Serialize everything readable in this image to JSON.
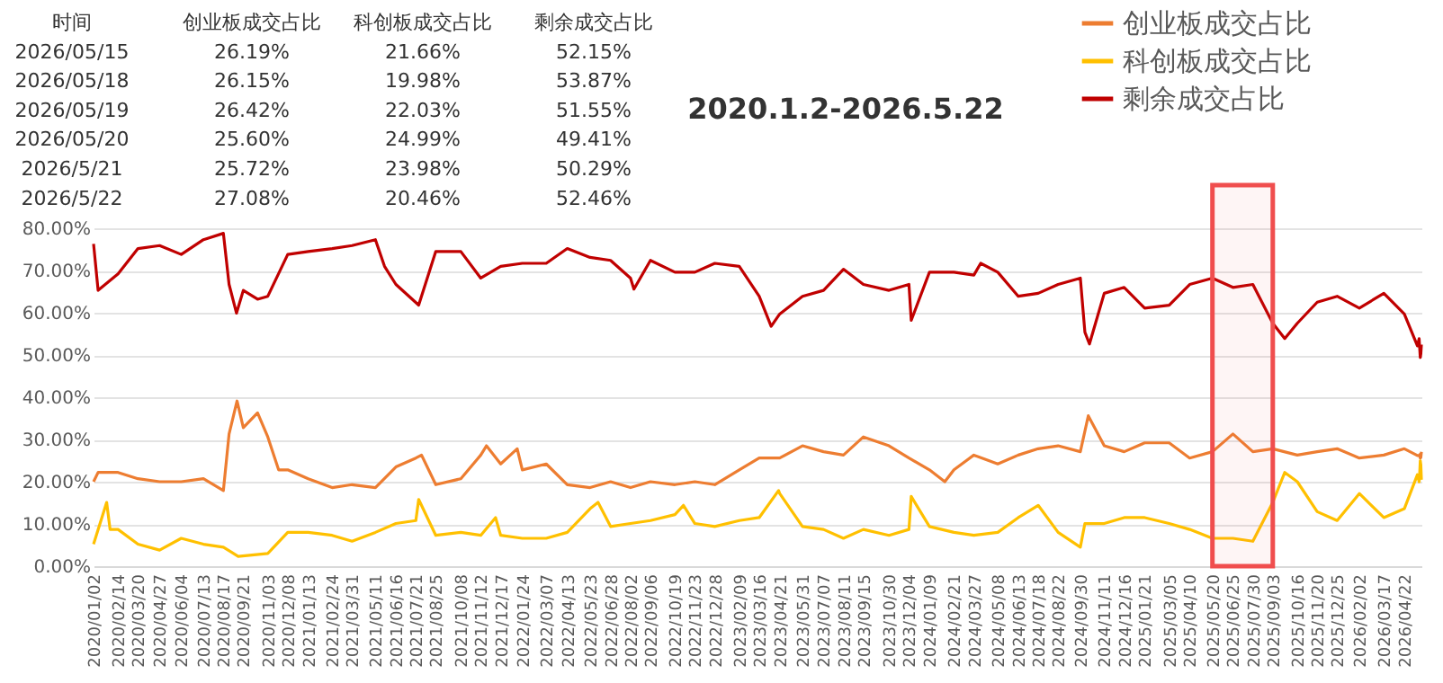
{
  "chart_data": {
    "type": "line",
    "title": "2020.1.2-2026.5.22",
    "annotations": [
      "时间",
      "创业板成交占比",
      "科创板成交占比",
      "剩余成交占比",
      "2026/05/15",
      "26.19%",
      "21.66%",
      "52.15%",
      "2026/05/18",
      "26.15%",
      "19.98%",
      "53.87%",
      "2026/05/19",
      "26.42%",
      "22.03%",
      "51.55%",
      "2026/05/20",
      "25.60%",
      "24.99%",
      "49.41%",
      "2026/5/21",
      "25.72%",
      "23.98%",
      "50.29%",
      "2026/5/22",
      "27.08%",
      "20.46%",
      "52.46%"
    ],
    "series": [
      {
        "name": "创业板成交占比",
        "color": "#ed7d31",
        "x": [
          "2020-01-02",
          "2020-01-10",
          "2020-02-14",
          "2020-03-20",
          "2020-04-27",
          "2020-06-04",
          "2020-07-13",
          "2020-08-17",
          "2020-08-27",
          "2020-09-10",
          "2020-09-21",
          "2020-10-16",
          "2020-11-03",
          "2020-11-22",
          "2020-12-08",
          "2021-01-13",
          "2021-02-24",
          "2021-03-31",
          "2021-05-11",
          "2021-06-16",
          "2021-07-21",
          "2021-07-31",
          "2021-08-25",
          "2021-10-08",
          "2021-11-12",
          "2021-11-22",
          "2021-12-17",
          "2022-01-15",
          "2022-01-24",
          "2022-03-07",
          "2022-04-13",
          "2022-05-23",
          "2022-06-28",
          "2022-08-02",
          "2022-09-06",
          "2022-10-19",
          "2022-11-23",
          "2022-12-28",
          "2023-02-09",
          "2023-03-16",
          "2023-04-21",
          "2023-05-31",
          "2023-07-07",
          "2023-08-11",
          "2023-09-15",
          "2023-10-30",
          "2023-12-04",
          "2024-01-09",
          "2024-02-05",
          "2024-02-21",
          "2024-03-27",
          "2024-05-08",
          "2024-06-13",
          "2024-07-18",
          "2024-08-22",
          "2024-09-30",
          "2024-10-14",
          "2024-11-11",
          "2024-12-16",
          "2025-01-21",
          "2025-03-05",
          "2025-04-10",
          "2025-05-20",
          "2025-06-25",
          "2025-07-30",
          "2025-09-03",
          "2025-10-16",
          "2025-11-20",
          "2025-12-25",
          "2026-02-02",
          "2026-03-17",
          "2026-04-22",
          "2026-05-15",
          "2026-05-18",
          "2026-05-19",
          "2026-05-20",
          "2026-05-21",
          "2026-05-22"
        ],
        "values": [
          20.0,
          22.2,
          22.2,
          20.7,
          20.0,
          20.0,
          20.7,
          17.9,
          31.3,
          39.1,
          32.8,
          36.3,
          30.6,
          22.8,
          22.8,
          20.7,
          18.6,
          19.3,
          18.6,
          23.5,
          25.6,
          26.3,
          19.3,
          20.7,
          26.3,
          28.5,
          24.2,
          27.8,
          22.8,
          24.2,
          19.3,
          18.6,
          20.0,
          18.6,
          20.0,
          19.3,
          20.0,
          19.3,
          22.8,
          25.6,
          25.6,
          28.5,
          27.1,
          26.3,
          30.6,
          28.5,
          25.6,
          22.8,
          20.0,
          22.8,
          26.3,
          24.2,
          26.3,
          27.8,
          28.5,
          27.1,
          35.6,
          28.5,
          27.1,
          29.2,
          29.2,
          25.6,
          27.1,
          31.3,
          27.1,
          27.8,
          26.3,
          27.1,
          27.8,
          25.6,
          26.3,
          27.8,
          26.19,
          26.15,
          26.42,
          25.6,
          25.72,
          27.08
        ]
      },
      {
        "name": "科创板成交占比",
        "color": "#ffc000",
        "x": [
          "2020-01-02",
          "2020-01-25",
          "2020-01-31",
          "2020-02-14",
          "2020-03-20",
          "2020-04-27",
          "2020-06-04",
          "2020-07-13",
          "2020-08-17",
          "2020-09-12",
          "2020-11-03",
          "2020-12-08",
          "2021-01-13",
          "2021-02-24",
          "2021-03-31",
          "2021-05-11",
          "2021-06-16",
          "2021-07-21",
          "2021-07-26",
          "2021-08-25",
          "2021-10-08",
          "2021-11-12",
          "2021-12-08",
          "2021-12-17",
          "2022-01-24",
          "2022-03-07",
          "2022-04-13",
          "2022-05-23",
          "2022-06-06",
          "2022-06-28",
          "2022-08-02",
          "2022-09-06",
          "2022-10-19",
          "2022-11-03",
          "2022-11-23",
          "2022-12-28",
          "2023-02-09",
          "2023-03-16",
          "2023-04-19",
          "2023-04-21",
          "2023-05-31",
          "2023-07-07",
          "2023-08-11",
          "2023-09-15",
          "2023-10-30",
          "2023-12-04",
          "2023-12-08",
          "2024-01-09",
          "2024-02-21",
          "2024-03-27",
          "2024-05-08",
          "2024-06-13",
          "2024-07-18",
          "2024-08-22",
          "2024-09-30",
          "2024-10-08",
          "2024-11-11",
          "2024-12-16",
          "2025-01-21",
          "2025-03-05",
          "2025-04-10",
          "2025-05-20",
          "2025-06-25",
          "2025-07-30",
          "2025-09-03",
          "2025-09-24",
          "2025-10-16",
          "2025-11-20",
          "2025-12-25",
          "2026-02-02",
          "2026-03-17",
          "2026-04-22",
          "2026-05-15",
          "2026-05-18",
          "2026-05-19",
          "2026-05-20",
          "2026-05-21",
          "2026-05-22"
        ],
        "values": [
          5.2,
          15.1,
          8.7,
          8.7,
          5.2,
          3.8,
          6.6,
          5.2,
          4.5,
          2.3,
          3.0,
          8.0,
          8.0,
          7.3,
          5.9,
          8.0,
          10.1,
          10.8,
          15.8,
          7.3,
          8.0,
          7.3,
          11.5,
          7.3,
          6.6,
          6.6,
          8.0,
          13.6,
          15.1,
          9.4,
          10.1,
          10.8,
          12.2,
          14.4,
          10.1,
          9.4,
          10.8,
          11.5,
          17.9,
          17.2,
          9.4,
          8.7,
          6.6,
          8.7,
          7.3,
          8.7,
          16.5,
          9.4,
          8.0,
          7.3,
          8.0,
          11.5,
          14.4,
          8.0,
          4.5,
          10.1,
          10.1,
          11.5,
          11.5,
          10.1,
          8.7,
          6.6,
          6.6,
          5.9,
          15.1,
          22.2,
          20.0,
          12.9,
          10.8,
          17.2,
          11.5,
          13.6,
          21.66,
          19.98,
          22.03,
          24.99,
          23.98,
          20.46
        ]
      },
      {
        "name": "剩余成交占比",
        "color": "#c00000",
        "x": [
          "2020-01-02",
          "2020-01-10",
          "2020-02-14",
          "2020-03-20",
          "2020-04-27",
          "2020-06-04",
          "2020-07-13",
          "2020-08-17",
          "2020-08-27",
          "2020-09-09",
          "2020-09-21",
          "2020-10-16",
          "2020-11-03",
          "2020-12-08",
          "2021-01-13",
          "2021-02-24",
          "2021-03-31",
          "2021-05-11",
          "2021-05-27",
          "2021-06-16",
          "2021-07-26",
          "2021-08-25",
          "2021-10-08",
          "2021-11-12",
          "2021-12-17",
          "2022-01-24",
          "2022-03-07",
          "2022-04-13",
          "2022-05-23",
          "2022-06-28",
          "2022-08-02",
          "2022-08-08",
          "2022-09-06",
          "2022-10-19",
          "2022-11-23",
          "2022-12-28",
          "2023-02-09",
          "2023-03-16",
          "2023-04-06",
          "2023-04-21",
          "2023-05-31",
          "2023-07-07",
          "2023-08-11",
          "2023-09-15",
          "2023-10-30",
          "2023-12-04",
          "2023-12-08",
          "2024-01-09",
          "2024-02-21",
          "2024-03-27",
          "2024-04-08",
          "2024-05-08",
          "2024-06-13",
          "2024-07-18",
          "2024-08-22",
          "2024-09-30",
          "2024-10-08",
          "2024-10-16",
          "2024-11-11",
          "2024-12-16",
          "2025-01-21",
          "2025-03-05",
          "2025-04-10",
          "2025-05-20",
          "2025-06-25",
          "2025-07-30",
          "2025-09-03",
          "2025-09-24",
          "2025-10-16",
          "2025-11-20",
          "2025-12-25",
          "2026-02-02",
          "2026-03-17",
          "2026-04-22",
          "2026-05-15",
          "2026-05-18",
          "2026-05-19",
          "2026-05-20",
          "2026-05-21",
          "2026-05-22"
        ],
        "values": [
          76.3,
          65.3,
          69.2,
          75.2,
          75.9,
          73.8,
          77.3,
          78.8,
          66.7,
          59.9,
          65.3,
          63.2,
          63.9,
          73.8,
          74.5,
          75.2,
          75.9,
          77.3,
          71.0,
          66.7,
          61.8,
          74.5,
          74.5,
          68.2,
          71.0,
          71.7,
          71.7,
          75.2,
          73.1,
          72.4,
          68.2,
          65.6,
          72.4,
          69.6,
          69.6,
          71.7,
          71.0,
          63.9,
          56.8,
          59.7,
          63.9,
          65.3,
          70.3,
          66.7,
          65.3,
          66.7,
          58.2,
          69.6,
          69.6,
          68.9,
          71.7,
          69.6,
          63.9,
          64.6,
          66.7,
          68.2,
          55.4,
          52.6,
          64.6,
          66.0,
          61.1,
          61.8,
          66.7,
          68.2,
          66.0,
          66.7,
          57.5,
          53.9,
          57.5,
          62.5,
          63.9,
          61.1,
          64.6,
          59.7,
          52.15,
          53.87,
          51.55,
          49.41,
          50.29,
          52.46
        ]
      }
    ],
    "xlim": [
      "2020-01-02",
      "2026-05-22"
    ],
    "xticks": [
      {
        "value": "2020-01-02",
        "label": "2020/01/02"
      },
      {
        "value": "2020-02-14",
        "label": "2020/02/14"
      },
      {
        "value": "2020-03-20",
        "label": "2020/03/20"
      },
      {
        "value": "2020-04-27",
        "label": "2020/04/27"
      },
      {
        "value": "2020-06-04",
        "label": "2020/06/04"
      },
      {
        "value": "2020-07-13",
        "label": "2020/07/13"
      },
      {
        "value": "2020-08-17",
        "label": "2020/08/17"
      },
      {
        "value": "2020-09-21",
        "label": "2020/09/21"
      },
      {
        "value": "2020-11-03",
        "label": "2020/11/03"
      },
      {
        "value": "2020-12-08",
        "label": "2020/12/08"
      },
      {
        "value": "2021-01-13",
        "label": "2021/01/13"
      },
      {
        "value": "2021-02-24",
        "label": "2021/02/24"
      },
      {
        "value": "2021-03-31",
        "label": "2021/03/31"
      },
      {
        "value": "2021-05-11",
        "label": "2021/05/11"
      },
      {
        "value": "2021-06-16",
        "label": "2021/06/16"
      },
      {
        "value": "2021-07-21",
        "label": "2021/07/21"
      },
      {
        "value": "2021-08-25",
        "label": "2021/08/25"
      },
      {
        "value": "2021-10-08",
        "label": "2021/10/08"
      },
      {
        "value": "2021-11-12",
        "label": "2021/11/12"
      },
      {
        "value": "2021-12-17",
        "label": "2021/12/17"
      },
      {
        "value": "2022-01-24",
        "label": "2022/01/24"
      },
      {
        "value": "2022-03-07",
        "label": "2022/03/07"
      },
      {
        "value": "2022-04-13",
        "label": "2022/04/13"
      },
      {
        "value": "2022-05-23",
        "label": "2022/05/23"
      },
      {
        "value": "2022-06-28",
        "label": "2022/06/28"
      },
      {
        "value": "2022-08-02",
        "label": "2022/08/02"
      },
      {
        "value": "2022-09-06",
        "label": "2022/09/06"
      },
      {
        "value": "2022-10-19",
        "label": "2022/10/19"
      },
      {
        "value": "2022-11-23",
        "label": "2022/11/23"
      },
      {
        "value": "2022-12-28",
        "label": "2022/12/28"
      },
      {
        "value": "2023-02-09",
        "label": "2023/02/09"
      },
      {
        "value": "2023-03-16",
        "label": "2023/03/16"
      },
      {
        "value": "2023-04-21",
        "label": "2023/04/21"
      },
      {
        "value": "2023-05-31",
        "label": "2023/05/31"
      },
      {
        "value": "2023-07-07",
        "label": "2023/07/07"
      },
      {
        "value": "2023-08-11",
        "label": "2023/08/11"
      },
      {
        "value": "2023-09-15",
        "label": "2023/09/15"
      },
      {
        "value": "2023-10-30",
        "label": "2023/10/30"
      },
      {
        "value": "2023-12-04",
        "label": "2023/12/04"
      },
      {
        "value": "2024-01-09",
        "label": "2024/01/09"
      },
      {
        "value": "2024-02-21",
        "label": "2024/02/21"
      },
      {
        "value": "2024-03-27",
        "label": "2024/03/27"
      },
      {
        "value": "2024-05-08",
        "label": "2024/05/08"
      },
      {
        "value": "2024-06-13",
        "label": "2024/06/13"
      },
      {
        "value": "2024-07-18",
        "label": "2024/07/18"
      },
      {
        "value": "2024-08-22",
        "label": "2024/08/22"
      },
      {
        "value": "2024-09-30",
        "label": "2024/09/30"
      },
      {
        "value": "2024-11-11",
        "label": "2024/11/11"
      },
      {
        "value": "2024-12-16",
        "label": "2024/12/16"
      },
      {
        "value": "2025-01-21",
        "label": "2025/01/21"
      },
      {
        "value": "2025-03-05",
        "label": "2025/03/05"
      },
      {
        "value": "2025-04-10",
        "label": "2025/04/10"
      },
      {
        "value": "2025-05-20",
        "label": "2025/05/20"
      },
      {
        "value": "2025-06-25",
        "label": "2025/06/25"
      },
      {
        "value": "2025-07-30",
        "label": "2025/07/30"
      },
      {
        "value": "2025-09-03",
        "label": "2025/09/03"
      },
      {
        "value": "2025-10-16",
        "label": "2025/10/16"
      },
      {
        "value": "2025-11-20",
        "label": "2025/11/20"
      },
      {
        "value": "2025-12-25",
        "label": "2025/12/25"
      },
      {
        "value": "2026-02-02",
        "label": "2026/02/02"
      },
      {
        "value": "2026-03-17",
        "label": "2026/03/17"
      },
      {
        "value": "2026-04-22",
        "label": "2026/04/22"
      }
    ],
    "ylim": [
      0,
      80
    ],
    "yticks": [
      {
        "value": 0,
        "label": "0.00%"
      },
      {
        "value": 10,
        "label": "10.00%"
      },
      {
        "value": 20,
        "label": "20.00%"
      },
      {
        "value": 30,
        "label": "30.00%"
      },
      {
        "value": 40,
        "label": "40.00%"
      },
      {
        "value": 50,
        "label": "50.00%"
      },
      {
        "value": 60,
        "label": "60.00%"
      },
      {
        "value": 70,
        "label": "70.00%"
      },
      {
        "value": 80,
        "label": "80.00%"
      }
    ],
    "grid": "y",
    "legend": "top right",
    "bands": [
      {
        "axis": "x",
        "from": "2025-05-20",
        "to": "2025-09-03",
        "color": "#f04e4e"
      }
    ]
  }
}
